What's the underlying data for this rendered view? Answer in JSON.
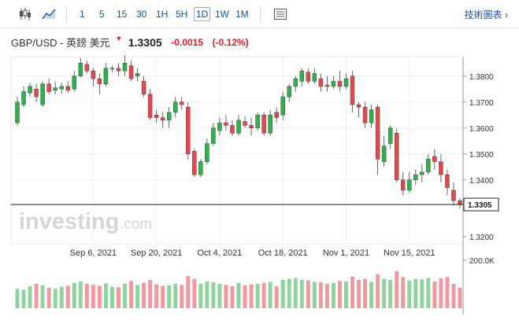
{
  "toolbar": {
    "timeframes": [
      "1",
      "5",
      "15",
      "30",
      "1H",
      "5H",
      "1D",
      "1W",
      "1M"
    ],
    "active_timeframe": "1D",
    "tech_chart_label": "技術圖表"
  },
  "header": {
    "symbol": "GBP/USD - 英鎊 美元",
    "price": "1.3305",
    "change": "-0.0015",
    "change_pct": "(-0.12%)"
  },
  "colors": {
    "up": "#2fb24a",
    "down": "#e5484d",
    "vol_up": "#8fd39d",
    "vol_down": "#f09aa0"
  },
  "watermark": {
    "brand": "investing",
    "domain": ".com"
  },
  "chart_data": {
    "type": "candlestick",
    "ylim": [
      1.3275,
      1.3875
    ],
    "y_ticks": [
      "1.3800",
      "1.3700",
      "1.3600",
      "1.3500",
      "1.3400",
      "1.3200"
    ],
    "current_price_label": "1.3305",
    "volume_label": "200.0K",
    "x_tick_labels": [
      "Sep 6, 2021",
      "Sep 20, 2021",
      "Oct 4, 2021",
      "Oct 18, 2021",
      "Nov 1, 2021",
      "Nov 15, 2021"
    ],
    "x_tick_index": [
      12,
      22,
      32,
      42,
      52,
      62
    ],
    "candles": [
      [
        1.362,
        1.37,
        1.372,
        1.361
      ],
      [
        1.369,
        1.374,
        1.376,
        1.368
      ],
      [
        1.3735,
        1.376,
        1.3775,
        1.372
      ],
      [
        1.375,
        1.372,
        1.377,
        1.37
      ],
      [
        1.369,
        1.377,
        1.378,
        1.368
      ],
      [
        1.377,
        1.374,
        1.379,
        1.373
      ],
      [
        1.3745,
        1.3755,
        1.378,
        1.373
      ],
      [
        1.375,
        1.376,
        1.3775,
        1.373
      ],
      [
        1.376,
        1.3745,
        1.378,
        1.3735
      ],
      [
        1.375,
        1.38,
        1.382,
        1.374
      ],
      [
        1.38,
        1.385,
        1.387,
        1.3795
      ],
      [
        1.3845,
        1.382,
        1.386,
        1.381
      ],
      [
        1.382,
        1.379,
        1.383,
        1.376
      ],
      [
        1.379,
        1.377,
        1.381,
        1.373
      ],
      [
        1.377,
        1.383,
        1.385,
        1.376
      ],
      [
        1.383,
        1.383,
        1.384,
        1.3815
      ],
      [
        1.383,
        1.382,
        1.385,
        1.38
      ],
      [
        1.382,
        1.385,
        1.388,
        1.38
      ],
      [
        1.384,
        1.379,
        1.386,
        1.378
      ],
      [
        1.38,
        1.381,
        1.383,
        1.378
      ],
      [
        1.378,
        1.373,
        1.38,
        1.372
      ],
      [
        1.373,
        1.364,
        1.375,
        1.363
      ],
      [
        1.365,
        1.364,
        1.367,
        1.362
      ],
      [
        1.364,
        1.363,
        1.366,
        1.36
      ],
      [
        1.363,
        1.366,
        1.368,
        1.36
      ],
      [
        1.366,
        1.37,
        1.372,
        1.364
      ],
      [
        1.37,
        1.369,
        1.372,
        1.367
      ],
      [
        1.368,
        1.35,
        1.37,
        1.348
      ],
      [
        1.351,
        1.342,
        1.352,
        1.341
      ],
      [
        1.342,
        1.347,
        1.348,
        1.341
      ],
      [
        1.347,
        1.354,
        1.356,
        1.346
      ],
      [
        1.354,
        1.36,
        1.362,
        1.353
      ],
      [
        1.359,
        1.362,
        1.364,
        1.357
      ],
      [
        1.362,
        1.361,
        1.365,
        1.359
      ],
      [
        1.361,
        1.358,
        1.363,
        1.357
      ],
      [
        1.358,
        1.363,
        1.365,
        1.357
      ],
      [
        1.3625,
        1.361,
        1.3645,
        1.36
      ],
      [
        1.361,
        1.36,
        1.364,
        1.357
      ],
      [
        1.36,
        1.365,
        1.366,
        1.359
      ],
      [
        1.365,
        1.358,
        1.366,
        1.357
      ],
      [
        1.358,
        1.365,
        1.367,
        1.357
      ],
      [
        1.366,
        1.364,
        1.368,
        1.362
      ],
      [
        1.365,
        1.372,
        1.374,
        1.363
      ],
      [
        1.372,
        1.376,
        1.377,
        1.37
      ],
      [
        1.376,
        1.379,
        1.38,
        1.374
      ],
      [
        1.378,
        1.382,
        1.383,
        1.376
      ],
      [
        1.3815,
        1.378,
        1.383,
        1.377
      ],
      [
        1.378,
        1.381,
        1.383,
        1.377
      ],
      [
        1.379,
        1.376,
        1.381,
        1.374
      ],
      [
        1.3765,
        1.376,
        1.38,
        1.374
      ],
      [
        1.376,
        1.378,
        1.38,
        1.375
      ],
      [
        1.378,
        1.376,
        1.382,
        1.374
      ],
      [
        1.376,
        1.379,
        1.381,
        1.375
      ],
      [
        1.38,
        1.369,
        1.382,
        1.366
      ],
      [
        1.369,
        1.368,
        1.37,
        1.364
      ],
      [
        1.368,
        1.362,
        1.37,
        1.36
      ],
      [
        1.362,
        1.367,
        1.369,
        1.36
      ],
      [
        1.368,
        1.348,
        1.369,
        1.342
      ],
      [
        1.347,
        1.353,
        1.357,
        1.345
      ],
      [
        1.354,
        1.36,
        1.361,
        1.352
      ],
      [
        1.358,
        1.34,
        1.36,
        1.339
      ],
      [
        1.34,
        1.336,
        1.343,
        1.334
      ],
      [
        1.336,
        1.34,
        1.343,
        1.335
      ],
      [
        1.34,
        1.342,
        1.344,
        1.338
      ],
      [
        1.342,
        1.343,
        1.346,
        1.339
      ],
      [
        1.343,
        1.348,
        1.35,
        1.342
      ],
      [
        1.349,
        1.347,
        1.352,
        1.344
      ],
      [
        1.347,
        1.342,
        1.35,
        1.339
      ],
      [
        1.342,
        1.337,
        1.344,
        1.334
      ],
      [
        1.336,
        1.332,
        1.339,
        1.33
      ],
      [
        1.332,
        1.3305,
        1.333,
        1.329
      ]
    ],
    "volume": [
      0.4,
      0.38,
      0.45,
      0.5,
      0.47,
      0.42,
      0.4,
      0.44,
      0.46,
      0.52,
      0.55,
      0.5,
      0.48,
      0.46,
      0.51,
      0.44,
      0.43,
      0.5,
      0.56,
      0.48,
      0.52,
      0.58,
      0.49,
      0.46,
      0.47,
      0.5,
      0.48,
      0.66,
      0.6,
      0.5,
      0.55,
      0.53,
      0.5,
      0.48,
      0.45,
      0.52,
      0.47,
      0.49,
      0.5,
      0.52,
      0.54,
      0.45,
      0.58,
      0.6,
      0.62,
      0.58,
      0.57,
      0.54,
      0.53,
      0.5,
      0.52,
      0.56,
      0.55,
      0.65,
      0.58,
      0.6,
      0.54,
      0.7,
      0.6,
      0.58,
      0.76,
      0.64,
      0.57,
      0.6,
      0.59,
      0.62,
      0.55,
      0.61,
      0.64,
      0.5,
      0.42
    ]
  }
}
